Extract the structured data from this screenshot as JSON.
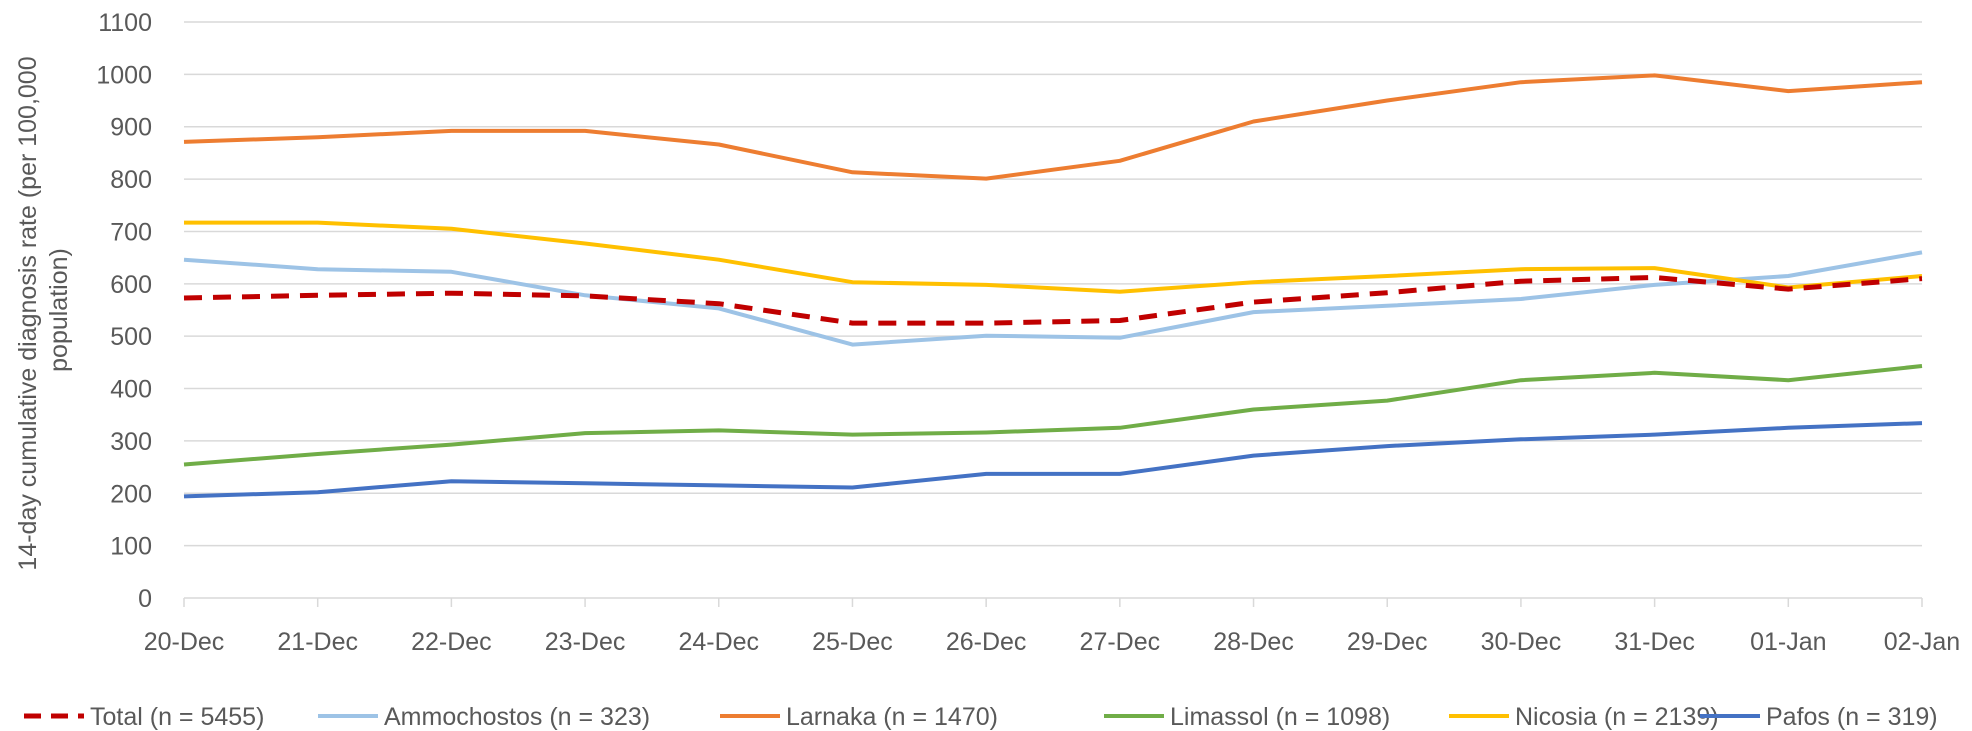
{
  "chart_data": {
    "type": "line",
    "title": "",
    "xlabel": "",
    "ylabel": "14-day cumulative diagnosis rate (per 100,000 population)",
    "ylabel_lines": [
      "14-day cumulative diagnosis rate (per 100,000",
      "population)"
    ],
    "ylim": [
      0,
      1100
    ],
    "yticks": [
      "0",
      "100",
      "200",
      "300",
      "400",
      "500",
      "600",
      "700",
      "800",
      "900",
      "1000",
      "1100"
    ],
    "grid": true,
    "legend_position": "bottom",
    "categories": [
      "20-Dec",
      "21-Dec",
      "22-Dec",
      "23-Dec",
      "24-Dec",
      "25-Dec",
      "26-Dec",
      "27-Dec",
      "28-Dec",
      "29-Dec",
      "30-Dec",
      "31-Dec",
      "01-Jan",
      "02-Jan"
    ],
    "series": [
      {
        "name": "Total (n = 5455)",
        "color": "#C00000",
        "dashed": true,
        "values": [
          573,
          578,
          582,
          577,
          562,
          525,
          525,
          530,
          565,
          583,
          605,
          612,
          590,
          610
        ]
      },
      {
        "name": "Ammochostos (n = 323)",
        "color": "#9DC3E6",
        "dashed": false,
        "values": [
          646,
          628,
          623,
          578,
          553,
          484,
          501,
          497,
          546,
          558,
          571,
          598,
          615,
          660
        ]
      },
      {
        "name": "Larnaka (n = 1470)",
        "color": "#ED7D31",
        "dashed": false,
        "values": [
          871,
          880,
          892,
          892,
          866,
          813,
          801,
          835,
          910,
          950,
          985,
          998,
          968,
          985
        ]
      },
      {
        "name": "Limassol (n = 1098)",
        "color": "#70AD47",
        "dashed": false,
        "values": [
          255,
          275,
          293,
          315,
          320,
          312,
          316,
          325,
          360,
          377,
          416,
          430,
          416,
          443
        ]
      },
      {
        "name": "Nicosia (n = 2139)",
        "color": "#FFC000",
        "dashed": false,
        "values": [
          717,
          717,
          705,
          677,
          646,
          603,
          598,
          585,
          603,
          615,
          628,
          630,
          593,
          615
        ]
      },
      {
        "name": "Pafos (n = 319)",
        "color": "#4472C4",
        "dashed": false,
        "values": [
          194,
          202,
          223,
          219,
          215,
          211,
          237,
          237,
          272,
          290,
          303,
          312,
          325,
          334
        ]
      }
    ]
  }
}
